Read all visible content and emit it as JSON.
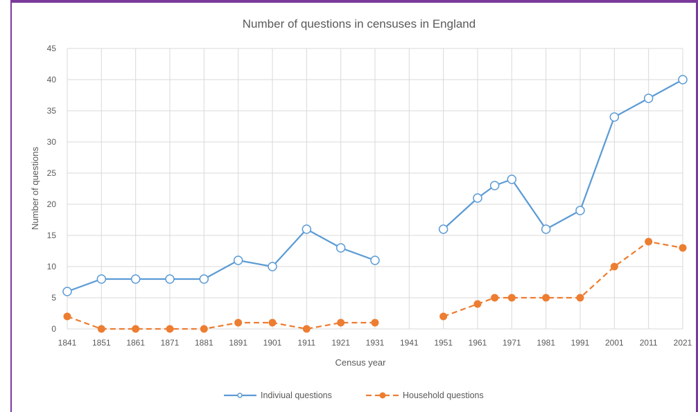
{
  "chart_data": {
    "type": "line",
    "title": "Number of questions in censuses in England",
    "xlabel": "Census year",
    "ylabel": "Number of questions",
    "ylim": [
      0,
      45
    ],
    "yticks": [
      0,
      5,
      10,
      15,
      20,
      25,
      30,
      35,
      40,
      45
    ],
    "categories": [
      "1841",
      "1851",
      "1861",
      "1871",
      "1881",
      "1891",
      "1901",
      "1911",
      "1921",
      "1931",
      "1941",
      "1951",
      "1961",
      "1971",
      "1981",
      "1991",
      "2001",
      "2011",
      "2021"
    ],
    "grid": true,
    "legend_position": "bottom",
    "series": [
      {
        "name": "Indiviual questions",
        "color": "#5b9bd5",
        "line_style": "solid",
        "marker": "open-circle",
        "segments": [
          [
            {
              "x": 1841,
              "y": 6
            },
            {
              "x": 1851,
              "y": 8
            },
            {
              "x": 1861,
              "y": 8
            },
            {
              "x": 1871,
              "y": 8
            },
            {
              "x": 1881,
              "y": 8
            },
            {
              "x": 1891,
              "y": 11
            },
            {
              "x": 1901,
              "y": 10
            },
            {
              "x": 1911,
              "y": 16
            },
            {
              "x": 1921,
              "y": 13
            },
            {
              "x": 1931,
              "y": 11
            }
          ],
          [
            {
              "x": 1951,
              "y": 16
            },
            {
              "x": 1961,
              "y": 21
            },
            {
              "x": 1966,
              "y": 23
            },
            {
              "x": 1971,
              "y": 24
            },
            {
              "x": 1981,
              "y": 16
            },
            {
              "x": 1991,
              "y": 19
            },
            {
              "x": 2001,
              "y": 34
            },
            {
              "x": 2011,
              "y": 37
            },
            {
              "x": 2021,
              "y": 40
            }
          ]
        ]
      },
      {
        "name": "Household questions",
        "color": "#ed7d31",
        "line_style": "dashed",
        "marker": "filled-circle",
        "segments": [
          [
            {
              "x": 1841,
              "y": 2
            },
            {
              "x": 1851,
              "y": 0
            },
            {
              "x": 1861,
              "y": 0
            },
            {
              "x": 1871,
              "y": 0
            },
            {
              "x": 1881,
              "y": 0
            },
            {
              "x": 1891,
              "y": 1
            },
            {
              "x": 1901,
              "y": 1
            },
            {
              "x": 1911,
              "y": 0
            },
            {
              "x": 1921,
              "y": 1
            },
            {
              "x": 1931,
              "y": 1
            }
          ],
          [
            {
              "x": 1951,
              "y": 2
            },
            {
              "x": 1961,
              "y": 4
            },
            {
              "x": 1966,
              "y": 5
            },
            {
              "x": 1971,
              "y": 5
            },
            {
              "x": 1981,
              "y": 5
            },
            {
              "x": 1991,
              "y": 5
            },
            {
              "x": 2001,
              "y": 10
            },
            {
              "x": 2011,
              "y": 14
            },
            {
              "x": 2021,
              "y": 13
            }
          ]
        ]
      }
    ]
  }
}
